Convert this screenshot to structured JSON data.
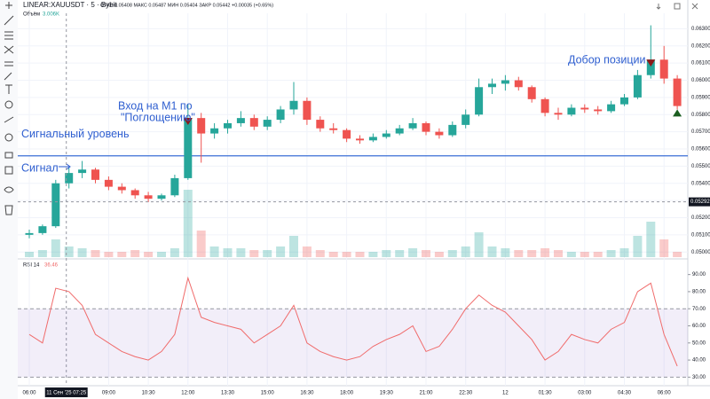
{
  "toolbar": {
    "symbol": "LINEAR:XAUUSDT · 5 · Bybit",
    "ohlc": "ОТКР 0.05408 МАКС 0.05487 МИН 0.05404 ЗАКР 0.05442 +0.00035 (+0.65%)"
  },
  "chart_data": [
    {
      "type": "candlestick",
      "categories": [
        "06:00",
        null,
        null,
        null,
        null,
        null,
        "09:00",
        null,
        null,
        "10:30",
        null,
        null,
        "12:00",
        null,
        null,
        "13:30",
        null,
        null,
        "15:00",
        null,
        null,
        "16:30",
        null,
        null,
        "18:00",
        null,
        null,
        "19:30",
        null,
        null,
        "21:00",
        null,
        null,
        "22:30",
        null,
        null,
        "12",
        null,
        null,
        "01:30",
        null,
        null,
        "03:00",
        null,
        null,
        "04:30",
        null,
        null,
        "06:00",
        null
      ],
      "open": [
        0.051,
        0.0511,
        0.0515,
        0.054,
        0.0546,
        0.0548,
        0.0542,
        0.0538,
        0.0536,
        0.0533,
        0.0531,
        0.0533,
        0.0543,
        0.0578,
        0.0569,
        0.0572,
        0.0575,
        0.0578,
        0.0573,
        0.0577,
        0.0583,
        0.0588,
        0.0577,
        0.0572,
        0.0571,
        0.0566,
        0.0565,
        0.0567,
        0.0569,
        0.0572,
        0.0575,
        0.057,
        0.0568,
        0.0574,
        0.058,
        0.0596,
        0.0598,
        0.06,
        0.0596,
        0.0589,
        0.0581,
        0.058,
        0.0584,
        0.0583,
        0.0582,
        0.0586,
        0.059,
        0.0603,
        0.0612,
        0.0601
      ],
      "high": [
        0.0513,
        0.0516,
        0.0542,
        0.0549,
        0.0553,
        0.0549,
        0.0544,
        0.054,
        0.0537,
        0.0535,
        0.0534,
        0.0545,
        0.0586,
        0.0581,
        0.0575,
        0.0577,
        0.0582,
        0.058,
        0.0579,
        0.0585,
        0.0599,
        0.059,
        0.0579,
        0.0575,
        0.0572,
        0.0568,
        0.0569,
        0.0571,
        0.0574,
        0.0578,
        0.0576,
        0.0572,
        0.0576,
        0.0583,
        0.0601,
        0.0601,
        0.0603,
        0.0602,
        0.0597,
        0.059,
        0.0584,
        0.0586,
        0.0586,
        0.0585,
        0.0588,
        0.0592,
        0.0606,
        0.0632,
        0.062,
        0.0603
      ],
      "low": [
        0.0508,
        0.051,
        0.0514,
        0.0537,
        0.0543,
        0.054,
        0.0536,
        0.0534,
        0.0531,
        0.0529,
        0.053,
        0.0532,
        0.0542,
        0.0552,
        0.0566,
        0.0569,
        0.0573,
        0.0571,
        0.0571,
        0.0575,
        0.058,
        0.0574,
        0.057,
        0.0569,
        0.0564,
        0.0563,
        0.0564,
        0.0566,
        0.0568,
        0.0571,
        0.0568,
        0.0566,
        0.0567,
        0.0572,
        0.0579,
        0.0592,
        0.0594,
        0.0594,
        0.0587,
        0.0579,
        0.0577,
        0.0579,
        0.0581,
        0.058,
        0.0581,
        0.0585,
        0.0589,
        0.0601,
        0.0598,
        0.0583
      ],
      "close": [
        0.0511,
        0.0515,
        0.054,
        0.0546,
        0.0548,
        0.0542,
        0.0538,
        0.0536,
        0.0533,
        0.0531,
        0.0533,
        0.0543,
        0.0578,
        0.0569,
        0.0572,
        0.0575,
        0.0578,
        0.0573,
        0.0577,
        0.0583,
        0.0588,
        0.0577,
        0.0572,
        0.0571,
        0.0566,
        0.0565,
        0.0567,
        0.0569,
        0.0572,
        0.0575,
        0.057,
        0.0568,
        0.0574,
        0.058,
        0.0596,
        0.0598,
        0.06,
        0.0596,
        0.0589,
        0.0581,
        0.058,
        0.0584,
        0.0583,
        0.0582,
        0.0586,
        0.059,
        0.0603,
        0.0612,
        0.0601,
        0.0585
      ],
      "volume": [
        3,
        4,
        10,
        6,
        5,
        4,
        3,
        3,
        4,
        3,
        3,
        5,
        38,
        15,
        6,
        5,
        5,
        4,
        4,
        6,
        12,
        6,
        4,
        3,
        3,
        3,
        3,
        4,
        4,
        5,
        4,
        3,
        4,
        6,
        14,
        6,
        5,
        4,
        4,
        5,
        4,
        3,
        3,
        3,
        4,
        5,
        12,
        20,
        10,
        3.006
      ],
      "volume_title": "Объём",
      "volume_last_label": "3.006K",
      "vlim": [
        0,
        40
      ],
      "up_color": "#26a69a",
      "down_color": "#ef5350",
      "ylim": [
        0.0497,
        0.0639
      ],
      "yticks": [
        {
          "value": 0.05,
          "label": "0.05000"
        },
        {
          "value": 0.051,
          "label": "0.05100"
        },
        {
          "value": 0.052,
          "label": "0.05200"
        },
        {
          "value": 0.053,
          "label": "0.05300"
        },
        {
          "value": 0.054,
          "label": "0.05400"
        },
        {
          "value": 0.055,
          "label": "0.05500"
        },
        {
          "value": 0.056,
          "label": "0.05600"
        },
        {
          "value": 0.057,
          "label": "0.05700"
        },
        {
          "value": 0.058,
          "label": "0.05800"
        },
        {
          "value": 0.059,
          "label": "0.05900"
        },
        {
          "value": 0.06,
          "label": "0.06000"
        },
        {
          "value": 0.061,
          "label": "0.06100"
        },
        {
          "value": 0.062,
          "label": "0.06200"
        },
        {
          "value": 0.063,
          "label": "0.06300"
        }
      ],
      "hline": {
        "value": 0.0556,
        "color": "#3b6fd6",
        "label": "Сигнальный уровень"
      },
      "crosshair": {
        "price": 0.05292,
        "price_label": "0.05292",
        "time_label": "11 Сен '25 07:25"
      },
      "markers": [
        {
          "index": 12,
          "value": 0.0576,
          "direction": "down",
          "color": "#8b1a1a"
        },
        {
          "index": 47,
          "value": 0.061,
          "direction": "down",
          "color": "#8b1a1a"
        },
        {
          "index": 49,
          "value": 0.0581,
          "direction": "up",
          "color": "#1b5e20"
        }
      ],
      "annotations": [
        "Сигнал",
        "Вход на  М1 по",
        "\"Поглощению\"",
        "Добор позиции"
      ]
    },
    {
      "type": "line",
      "title": "RSI 14",
      "last_value_label": "36.46",
      "color": "#f06b6b",
      "values": [
        55,
        50,
        82,
        80,
        72,
        55,
        50,
        45,
        42,
        40,
        45,
        55,
        88,
        65,
        62,
        60,
        58,
        50,
        55,
        60,
        72,
        50,
        45,
        42,
        40,
        42,
        48,
        52,
        55,
        60,
        45,
        48,
        58,
        70,
        78,
        72,
        68,
        60,
        52,
        40,
        45,
        55,
        52,
        50,
        58,
        62,
        80,
        85,
        55,
        36.46
      ],
      "ylim": [
        25,
        95
      ],
      "band": [
        30,
        70
      ],
      "yticks": [
        {
          "value": 30,
          "label": "30.00"
        },
        {
          "value": 40,
          "label": "40.00"
        },
        {
          "value": 50,
          "label": "50.00"
        },
        {
          "value": 60,
          "label": "60.00"
        },
        {
          "value": 70,
          "label": "70.00"
        },
        {
          "value": 80,
          "label": "80.00"
        },
        {
          "value": 90,
          "label": "90.00"
        }
      ]
    }
  ]
}
